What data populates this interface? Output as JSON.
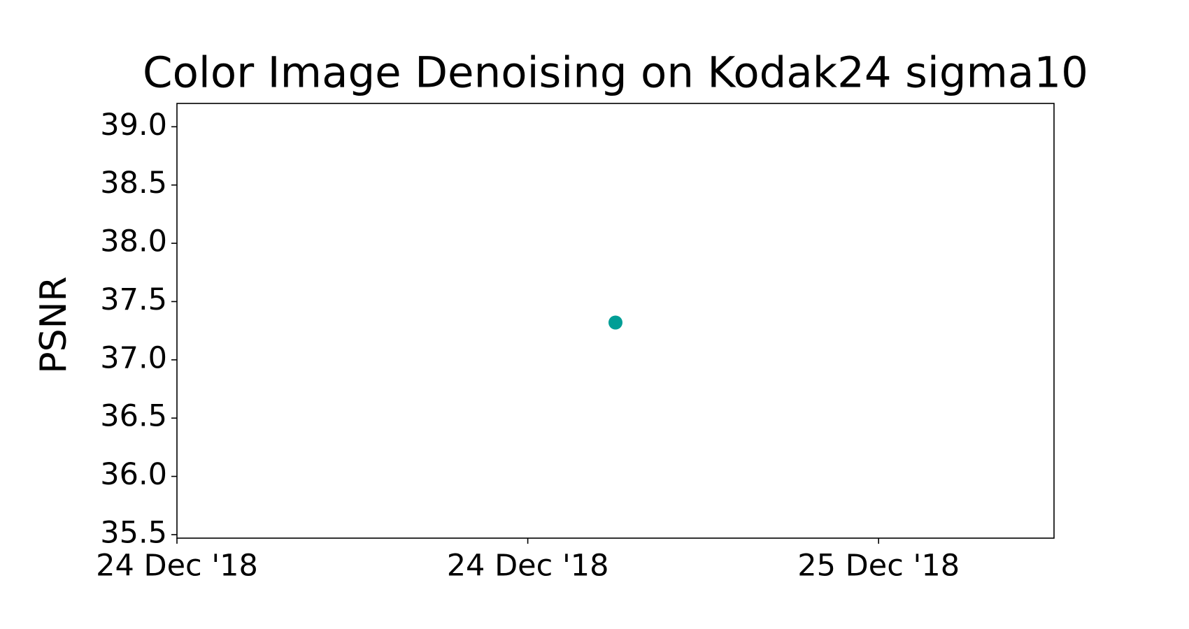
{
  "chart_data": {
    "type": "scatter",
    "title": "Color Image Denoising on Kodak24 sigma10",
    "y_label": "PSNR",
    "series": [
      {
        "color": "#009e96",
        "x": [
          "2018-12-24T15:00"
        ],
        "values": [
          37.32
        ]
      }
    ],
    "xlim": [
      "2018-12-24T00:00",
      "2018-12-25T06:00"
    ],
    "xticks": [
      {
        "value": "2018-12-24T00:00",
        "label": "24 Dec '18"
      },
      {
        "value": "2018-12-24T12:00",
        "label": "24 Dec '18"
      },
      {
        "value": "2018-12-25T00:00",
        "label": "25 Dec '18"
      }
    ],
    "ylim": [
      35.47,
      39.2
    ],
    "yticks": [
      {
        "value": 35.5,
        "label": "35.5"
      },
      {
        "value": 36,
        "label": "36.0"
      },
      {
        "value": 36.5,
        "label": "36.5"
      },
      {
        "value": 37,
        "label": "37.0"
      },
      {
        "value": 37.5,
        "label": "37.5"
      },
      {
        "value": 38,
        "label": "38.0"
      },
      {
        "value": 38.5,
        "label": "38.5"
      },
      {
        "value": 39,
        "label": "39.0"
      }
    ],
    "grid": false
  }
}
